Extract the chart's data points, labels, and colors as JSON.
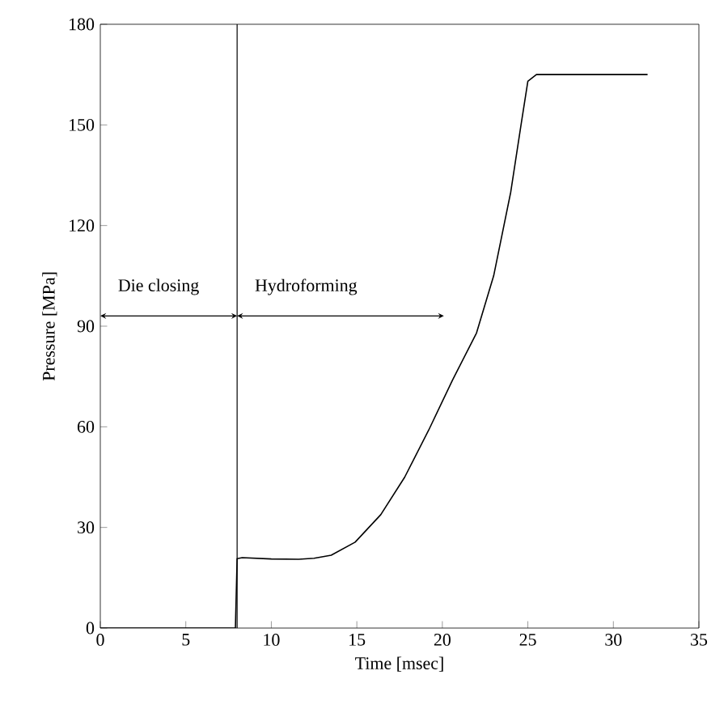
{
  "chart_data": {
    "type": "line",
    "xlabel": "Time [msec]",
    "ylabel": "Pressure [MPa]",
    "xlim": [
      0,
      35
    ],
    "ylim": [
      0,
      180
    ],
    "xticks": [
      0,
      5,
      10,
      15,
      20,
      25,
      30,
      35
    ],
    "yticks": [
      0,
      30,
      60,
      90,
      120,
      150,
      180
    ],
    "series": [
      {
        "color": "#000000",
        "x": [
          0,
          7.9,
          8.0,
          8.3,
          10,
          11.6,
          12.5,
          13.5,
          14.9,
          16.4,
          17.8,
          19.2,
          20.6,
          22,
          23,
          24,
          24.6,
          25,
          25.5,
          28,
          32
        ],
        "values": [
          0,
          0,
          20.7,
          21,
          20.6,
          20.5,
          20.8,
          21.7,
          25.6,
          33.8,
          45,
          59,
          74,
          88,
          105,
          130,
          150,
          163,
          165,
          165,
          165
        ]
      }
    ],
    "ref_lines": [
      {
        "axis": "x",
        "value": 8,
        "color": "#000000"
      }
    ],
    "annotations": [
      "Die closing",
      "Hydroforming"
    ],
    "marker": "none",
    "line_style": "solid"
  }
}
